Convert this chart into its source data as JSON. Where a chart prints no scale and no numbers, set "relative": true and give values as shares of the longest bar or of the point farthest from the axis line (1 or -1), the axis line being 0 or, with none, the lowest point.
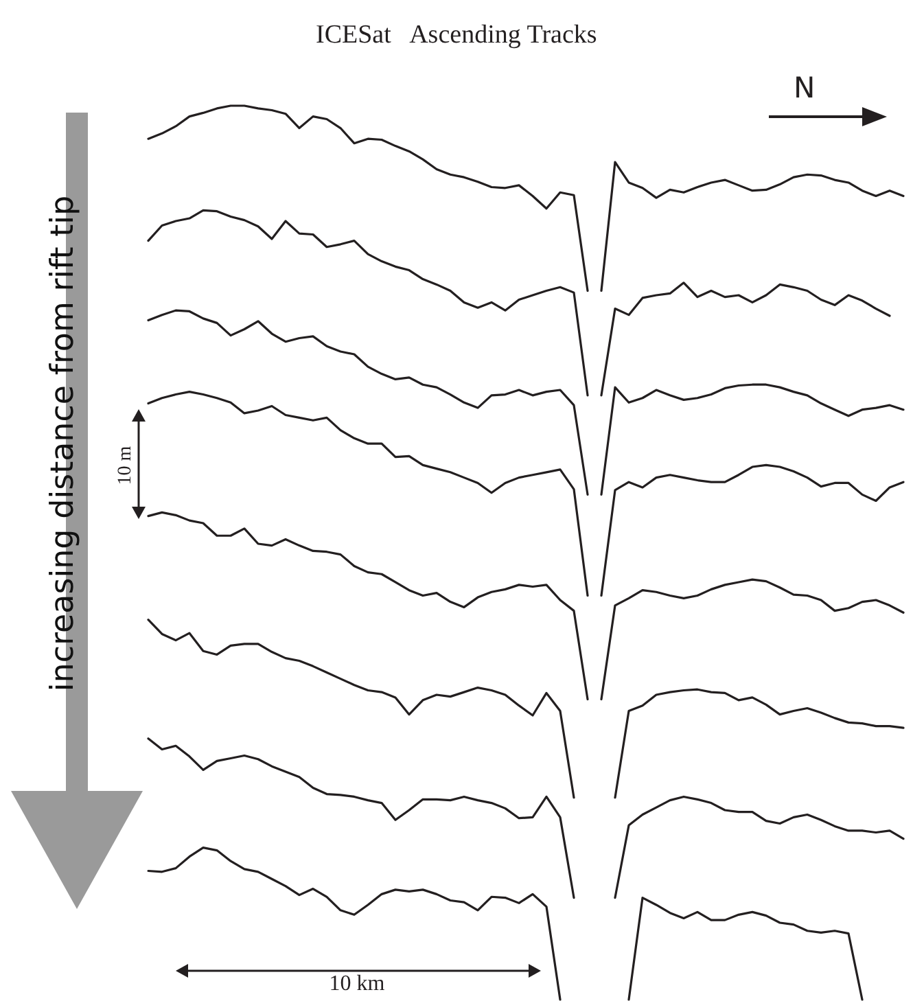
{
  "chart_data": {
    "type": "line",
    "title": "ICESat   Ascending Tracks",
    "relative": true,
    "annotations": [
      "N",
      "10 m",
      "10 km",
      "increasing distance from rift tip"
    ],
    "categories": [
      null,
      null,
      null,
      null,
      null,
      null,
      null,
      null,
      null,
      null,
      null,
      null,
      null,
      null,
      null,
      null,
      null,
      null,
      null,
      null,
      null,
      null,
      null,
      null,
      null,
      null,
      null,
      null,
      null,
      null,
      null,
      null,
      null,
      null,
      null,
      null,
      null,
      null,
      null,
      null,
      null,
      null,
      null,
      null,
      null,
      null,
      null,
      null,
      null,
      null,
      null,
      null,
      null,
      null,
      null,
      null
    ],
    "series": [
      {
        "color": "#231f20",
        "values": [
          0.963,
          0.969,
          0.977,
          0.988,
          0.992,
          0.997,
          1,
          1,
          0.997,
          0.995,
          0.991,
          0.975,
          0.988,
          0.985,
          0.975,
          0.958,
          0.963,
          0.962,
          0.955,
          0.949,
          0.94,
          0.929,
          0.923,
          0.92,
          0.915,
          0.909,
          0.908,
          0.911,
          0.899,
          0.885,
          0.903,
          0.9,
          0.793,
          null,
          null,
          null,
          null,
          null,
          null,
          null,
          null,
          null,
          null,
          null,
          null,
          null,
          null,
          null,
          null,
          null,
          null,
          null,
          null,
          null,
          null,
          null
        ]
      },
      {
        "color": "#231f20",
        "values": [
          null,
          null,
          null,
          null,
          null,
          null,
          null,
          null,
          null,
          null,
          null,
          null,
          null,
          null,
          null,
          null,
          null,
          null,
          null,
          null,
          null,
          null,
          null,
          null,
          null,
          null,
          null,
          null,
          null,
          null,
          null,
          null,
          null,
          0.793,
          0.937,
          0.914,
          0.908,
          0.897,
          0.906,
          0.903,
          0.909,
          0.914,
          0.917,
          0.911,
          0.905,
          0.906,
          0.912,
          0.92,
          0.923,
          0.922,
          0.917,
          0.914,
          0.905,
          0.899,
          0.905,
          0.899
        ]
      },
      {
        "color": "#231f20",
        "values": [
          0.849,
          0.866,
          0.871,
          0.874,
          0.883,
          0.882,
          0.876,
          0.872,
          0.865,
          0.851,
          0.871,
          0.857,
          0.856,
          0.842,
          0.845,
          0.849,
          0.834,
          0.826,
          0.82,
          0.816,
          0.806,
          0.8,
          0.793,
          0.78,
          0.774,
          0.78,
          0.771,
          0.783,
          0.788,
          0.793,
          0.797,
          0.791,
          0.676,
          null,
          null,
          null,
          null,
          null,
          null,
          null,
          null,
          null,
          null,
          null,
          null,
          null,
          null,
          null,
          null,
          null,
          null,
          null,
          null,
          null,
          null,
          null
        ]
      },
      {
        "color": "#231f20",
        "values": [
          null,
          null,
          null,
          null,
          null,
          null,
          null,
          null,
          null,
          null,
          null,
          null,
          null,
          null,
          null,
          null,
          null,
          null,
          null,
          null,
          null,
          null,
          null,
          null,
          null,
          null,
          null,
          null,
          null,
          null,
          null,
          null,
          null,
          0.676,
          0.773,
          0.766,
          0.785,
          0.788,
          0.79,
          0.802,
          0.786,
          0.793,
          0.786,
          0.788,
          0.78,
          0.788,
          0.8,
          0.797,
          0.793,
          0.783,
          0.777,
          0.788,
          0.782,
          0.773,
          0.765,
          null
        ]
      },
      {
        "color": "#231f20",
        "values": [
          0.76,
          0.766,
          0.771,
          0.77,
          0.762,
          0.757,
          0.743,
          0.75,
          0.759,
          0.745,
          0.736,
          0.74,
          0.742,
          0.731,
          0.725,
          0.722,
          0.708,
          0.7,
          0.694,
          0.696,
          0.688,
          0.685,
          0.677,
          0.668,
          0.662,
          0.676,
          0.677,
          0.682,
          0.676,
          0.68,
          0.682,
          0.665,
          0.565,
          null,
          null,
          null,
          null,
          null,
          null,
          null,
          null,
          null,
          null,
          null,
          null,
          null,
          null,
          null,
          null,
          null,
          null,
          null,
          null,
          null,
          null,
          null
        ]
      },
      {
        "color": "#231f20",
        "values": [
          null,
          null,
          null,
          null,
          null,
          null,
          null,
          null,
          null,
          null,
          null,
          null,
          null,
          null,
          null,
          null,
          null,
          null,
          null,
          null,
          null,
          null,
          null,
          null,
          null,
          null,
          null,
          null,
          null,
          null,
          null,
          null,
          null,
          0.565,
          0.685,
          0.668,
          0.673,
          0.682,
          0.676,
          0.671,
          0.673,
          0.677,
          0.684,
          0.687,
          0.688,
          0.688,
          0.685,
          0.68,
          0.676,
          0.667,
          0.66,
          0.653,
          0.66,
          0.662,
          0.665,
          0.66
        ]
      },
      {
        "color": "#231f20",
        "values": [
          0.667,
          0.673,
          0.677,
          0.68,
          0.677,
          0.673,
          0.668,
          0.656,
          0.659,
          0.664,
          0.654,
          0.651,
          0.648,
          0.651,
          0.637,
          0.628,
          0.622,
          0.622,
          0.607,
          0.608,
          0.598,
          0.594,
          0.59,
          0.584,
          0.578,
          0.567,
          0.578,
          0.584,
          0.587,
          0.59,
          0.593,
          0.571,
          0.452,
          null,
          null,
          null,
          null,
          null,
          null,
          null,
          null,
          null,
          null,
          null,
          null,
          null,
          null,
          null,
          null,
          null,
          null,
          null,
          null,
          null,
          null,
          null
        ]
      },
      {
        "color": "#231f20",
        "values": [
          null,
          null,
          null,
          null,
          null,
          null,
          null,
          null,
          null,
          null,
          null,
          null,
          null,
          null,
          null,
          null,
          null,
          null,
          null,
          null,
          null,
          null,
          null,
          null,
          null,
          null,
          null,
          null,
          null,
          null,
          null,
          null,
          null,
          0.452,
          0.57,
          0.579,
          0.573,
          0.584,
          0.587,
          0.584,
          0.581,
          0.579,
          0.579,
          0.587,
          0.596,
          0.598,
          0.596,
          0.591,
          0.584,
          0.574,
          0.578,
          0.578,
          0.565,
          0.558,
          0.573,
          0.579
        ]
      },
      {
        "color": "#231f20",
        "values": [
          0.541,
          0.545,
          0.542,
          0.536,
          0.533,
          0.519,
          0.519,
          0.527,
          0.51,
          0.508,
          0.515,
          0.508,
          0.502,
          0.501,
          0.498,
          0.485,
          0.478,
          0.476,
          0.467,
          0.458,
          0.452,
          0.455,
          0.445,
          0.439,
          0.45,
          0.456,
          0.459,
          0.464,
          0.462,
          0.464,
          0.447,
          0.435,
          0.336,
          null,
          null,
          null,
          null,
          null,
          null,
          null,
          null,
          null,
          null,
          null,
          null,
          null,
          null,
          null,
          null,
          null,
          null,
          null,
          null,
          null,
          null,
          null
        ]
      },
      {
        "color": "#231f20",
        "values": [
          null,
          null,
          null,
          null,
          null,
          null,
          null,
          null,
          null,
          null,
          null,
          null,
          null,
          null,
          null,
          null,
          null,
          null,
          null,
          null,
          null,
          null,
          null,
          null,
          null,
          null,
          null,
          null,
          null,
          null,
          null,
          null,
          null,
          0.336,
          0.441,
          0.449,
          0.458,
          0.456,
          0.452,
          0.449,
          0.452,
          0.459,
          0.464,
          0.467,
          0.47,
          0.468,
          0.461,
          0.453,
          0.452,
          0.447,
          0.435,
          0.438,
          0.445,
          0.447,
          0.441,
          0.433
        ]
      },
      {
        "color": "#231f20",
        "values": [
          0.425,
          0.409,
          0.402,
          0.41,
          0.39,
          0.386,
          0.396,
          0.398,
          0.398,
          0.389,
          0.382,
          0.379,
          0.373,
          0.366,
          0.359,
          0.352,
          0.346,
          0.344,
          0.338,
          0.319,
          0.335,
          0.341,
          0.339,
          0.344,
          0.349,
          0.346,
          0.341,
          0.329,
          0.318,
          0.343,
          0.323,
          0.226,
          null,
          null,
          null,
          null,
          null,
          null,
          null,
          null,
          null,
          null,
          null,
          null,
          null,
          null,
          null,
          null,
          null,
          null,
          null,
          null,
          null,
          null,
          null,
          null
        ]
      },
      {
        "color": "#231f20",
        "values": [
          null,
          null,
          null,
          null,
          null,
          null,
          null,
          null,
          null,
          null,
          null,
          null,
          null,
          null,
          null,
          null,
          null,
          null,
          null,
          null,
          null,
          null,
          null,
          null,
          null,
          null,
          null,
          null,
          null,
          null,
          null,
          null,
          null,
          null,
          0.226,
          0.323,
          0.329,
          0.341,
          0.344,
          0.346,
          0.347,
          0.344,
          0.343,
          0.335,
          0.338,
          0.33,
          0.319,
          0.323,
          0.326,
          0.321,
          0.315,
          0.31,
          0.309,
          0.306,
          0.306,
          0.304
        ]
      },
      {
        "color": "#231f20",
        "values": [
          0.292,
          0.28,
          0.284,
          0.272,
          0.257,
          0.267,
          0.27,
          0.273,
          0.269,
          0.261,
          0.255,
          0.249,
          0.237,
          0.23,
          0.229,
          0.227,
          0.223,
          0.22,
          0.201,
          0.212,
          0.224,
          0.224,
          0.223,
          0.227,
          0.223,
          0.22,
          0.214,
          0.203,
          0.204,
          0.227,
          0.204,
          0.114,
          null,
          null,
          null,
          null,
          null,
          null,
          null,
          null,
          null,
          null,
          null,
          null,
          null,
          null,
          null,
          null,
          null,
          null,
          null,
          null,
          null,
          null,
          null,
          null
        ]
      },
      {
        "color": "#231f20",
        "values": [
          null,
          null,
          null,
          null,
          null,
          null,
          null,
          null,
          null,
          null,
          null,
          null,
          null,
          null,
          null,
          null,
          null,
          null,
          null,
          null,
          null,
          null,
          null,
          null,
          null,
          null,
          null,
          null,
          null,
          null,
          null,
          null,
          null,
          null,
          0.114,
          0.195,
          0.207,
          0.215,
          0.223,
          0.227,
          0.224,
          0.22,
          0.212,
          0.21,
          0.21,
          0.2,
          0.197,
          0.204,
          0.207,
          0.201,
          0.194,
          0.189,
          0.189,
          0.187,
          0.189,
          0.18
        ]
      },
      {
        "color": "#231f20",
        "values": [
          0.144,
          0.143,
          0.147,
          0.16,
          0.17,
          0.167,
          0.155,
          0.146,
          0.143,
          0.135,
          0.127,
          0.117,
          0.124,
          0.115,
          0.1,
          0.095,
          0.106,
          0.118,
          0.123,
          0.121,
          0.123,
          0.118,
          0.111,
          0.109,
          0.1,
          0.115,
          0.114,
          0.108,
          0.118,
          0.104,
          0,
          null,
          null,
          null,
          null,
          null,
          null,
          null,
          null,
          null,
          null,
          null,
          null,
          null,
          null,
          null,
          null,
          null,
          null,
          null,
          null,
          null,
          null,
          null,
          null,
          null
        ]
      },
      {
        "color": "#231f20",
        "values": [
          null,
          null,
          null,
          null,
          null,
          null,
          null,
          null,
          null,
          null,
          null,
          null,
          null,
          null,
          null,
          null,
          null,
          null,
          null,
          null,
          null,
          null,
          null,
          null,
          null,
          null,
          null,
          null,
          null,
          null,
          null,
          null,
          null,
          null,
          null,
          0,
          0.114,
          0.106,
          0.097,
          0.091,
          0.098,
          0.089,
          0.089,
          0.095,
          0.098,
          0.094,
          0.086,
          0.084,
          0.077,
          0.075,
          0.077,
          0.074,
          0,
          null,
          null,
          null
        ]
      }
    ]
  }
}
